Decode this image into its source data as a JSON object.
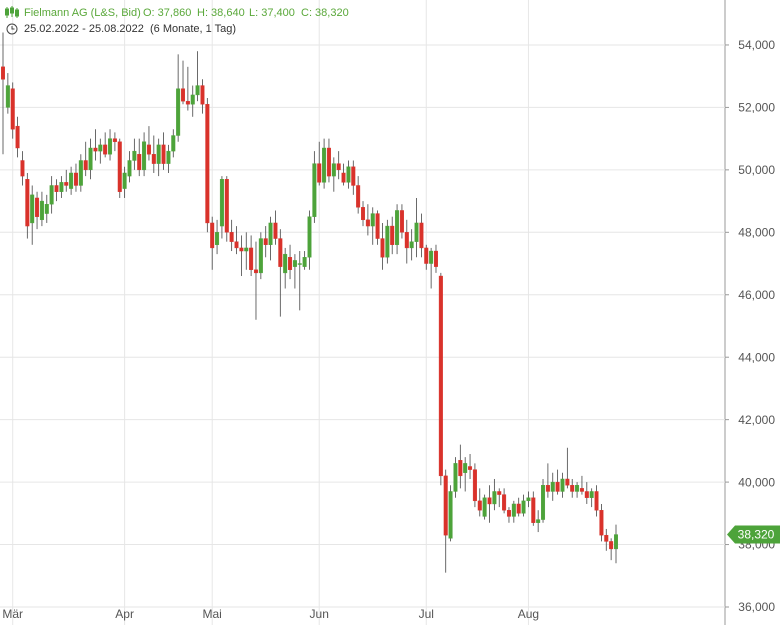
{
  "chart_data": {
    "type": "candlestick",
    "title": "Fielmann AG (L&S, Bid)",
    "ohlc_labels": [
      "O: 37,860",
      "H: 38,640",
      "L: 37,400",
      "C: 38,320"
    ],
    "subtitle": "25.02.2022 - 25.08.2022",
    "period": "(6 Monate, 1 Tag)",
    "last_label": "38,320",
    "up_color": "#4da33a",
    "down_color": "#d9322b",
    "ylim": [
      36000,
      55440
    ],
    "yticks": [
      {
        "value": 36000,
        "label": "36,000"
      },
      {
        "value": 38000,
        "label": "38,000"
      },
      {
        "value": 40000,
        "label": "40,000"
      },
      {
        "value": 42000,
        "label": "42,000"
      },
      {
        "value": 44000,
        "label": "44,000"
      },
      {
        "value": 46000,
        "label": "46,000"
      },
      {
        "value": 48000,
        "label": "48,000"
      },
      {
        "value": 50000,
        "label": "50,000"
      },
      {
        "value": 52000,
        "label": "52,000"
      },
      {
        "value": 54000,
        "label": "54,000"
      }
    ],
    "grid": true,
    "categories": [
      null,
      null,
      "Mär",
      null,
      null,
      null,
      null,
      null,
      null,
      null,
      null,
      null,
      null,
      null,
      null,
      null,
      null,
      null,
      null,
      null,
      null,
      null,
      null,
      null,
      null,
      "Apr",
      null,
      null,
      null,
      null,
      null,
      null,
      null,
      null,
      null,
      null,
      null,
      null,
      null,
      null,
      null,
      null,
      null,
      "Mai",
      null,
      null,
      null,
      null,
      null,
      null,
      null,
      null,
      null,
      null,
      null,
      null,
      null,
      null,
      null,
      null,
      null,
      null,
      null,
      null,
      null,
      "Jun",
      null,
      null,
      null,
      null,
      null,
      null,
      null,
      null,
      null,
      null,
      null,
      null,
      null,
      null,
      null,
      null,
      null,
      null,
      null,
      null,
      null,
      "Jul",
      null,
      null,
      null,
      null,
      null,
      null,
      null,
      null,
      null,
      null,
      null,
      null,
      null,
      null,
      null,
      null,
      null,
      null,
      null,
      null,
      "Aug",
      null,
      null,
      null,
      null,
      null,
      null,
      null,
      null,
      null,
      null,
      null,
      null,
      null,
      null,
      null,
      null,
      null,
      null
    ],
    "ohlc": [
      [
        53300,
        54400,
        50500,
        52900
      ],
      [
        52000,
        53100,
        51800,
        52700
      ],
      [
        52600,
        52800,
        51000,
        51300
      ],
      [
        51400,
        51700,
        50400,
        50700
      ],
      [
        50300,
        50600,
        49500,
        49800
      ],
      [
        49700,
        49900,
        47800,
        48200
      ],
      [
        48300,
        49500,
        47600,
        49200
      ],
      [
        49100,
        49300,
        48100,
        48500
      ],
      [
        48400,
        49300,
        48200,
        49000
      ],
      [
        48600,
        49200,
        48300,
        48900
      ],
      [
        48900,
        49800,
        48600,
        49500
      ],
      [
        49500,
        49700,
        49000,
        49300
      ],
      [
        49300,
        49800,
        49100,
        49600
      ],
      [
        49600,
        50000,
        49300,
        49500
      ],
      [
        49400,
        50100,
        49200,
        49900
      ],
      [
        49900,
        50200,
        49300,
        49500
      ],
      [
        49500,
        50500,
        49300,
        50300
      ],
      [
        50300,
        50900,
        49800,
        50000
      ],
      [
        50000,
        51000,
        49700,
        50700
      ],
      [
        50700,
        51300,
        50300,
        50600
      ],
      [
        50600,
        51000,
        50200,
        50800
      ],
      [
        50800,
        51200,
        50400,
        50500
      ],
      [
        50500,
        51300,
        50300,
        51000
      ],
      [
        51000,
        51200,
        50600,
        50900
      ],
      [
        50900,
        51000,
        49100,
        49300
      ],
      [
        49400,
        50100,
        49100,
        49900
      ],
      [
        49800,
        50600,
        49600,
        50300
      ],
      [
        50300,
        51000,
        50000,
        50600
      ],
      [
        50500,
        51000,
        49800,
        50000
      ],
      [
        50000,
        51200,
        49800,
        50900
      ],
      [
        50800,
        51400,
        50300,
        50500
      ],
      [
        50500,
        51100,
        49900,
        50200
      ],
      [
        50200,
        51000,
        49800,
        50800
      ],
      [
        50800,
        51200,
        50000,
        50200
      ],
      [
        50200,
        50800,
        49900,
        50600
      ],
      [
        50600,
        51300,
        50400,
        51100
      ],
      [
        51100,
        53700,
        50900,
        52600
      ],
      [
        52600,
        53500,
        52100,
        52200
      ],
      [
        52200,
        53300,
        51900,
        52100
      ],
      [
        52100,
        52700,
        51700,
        52400
      ],
      [
        52400,
        53800,
        52200,
        52700
      ],
      [
        52700,
        52900,
        51800,
        52100
      ],
      [
        52100,
        52300,
        48000,
        48300
      ],
      [
        48300,
        48500,
        46800,
        47500
      ],
      [
        47600,
        48400,
        47300,
        48000
      ],
      [
        48200,
        49800,
        47800,
        49700
      ],
      [
        49700,
        49800,
        47700,
        48000
      ],
      [
        48000,
        48400,
        47400,
        47700
      ],
      [
        47700,
        48200,
        47300,
        47500
      ],
      [
        47500,
        47900,
        46600,
        47400
      ],
      [
        47400,
        48000,
        46800,
        47500
      ],
      [
        47500,
        47900,
        46600,
        46800
      ],
      [
        46800,
        47700,
        45200,
        46700
      ],
      [
        46700,
        48000,
        46500,
        47800
      ],
      [
        47800,
        48200,
        47200,
        47600
      ],
      [
        47600,
        48500,
        47100,
        48300
      ],
      [
        48300,
        48700,
        47600,
        47800
      ],
      [
        47800,
        48100,
        45300,
        46900
      ],
      [
        46700,
        47500,
        46200,
        47300
      ],
      [
        47200,
        47600,
        46500,
        46800
      ],
      [
        46900,
        47300,
        46200,
        47100
      ],
      [
        47000,
        47400,
        45500,
        47000
      ],
      [
        46900,
        47400,
        46800,
        47200
      ],
      [
        47200,
        48700,
        46800,
        48500
      ],
      [
        48500,
        50600,
        48300,
        50200
      ],
      [
        50200,
        50900,
        49500,
        49600
      ],
      [
        49600,
        51000,
        49400,
        50700
      ],
      [
        50700,
        51000,
        49600,
        49800
      ],
      [
        49800,
        50400,
        49300,
        50200
      ],
      [
        50200,
        50600,
        49700,
        50000
      ],
      [
        49900,
        50200,
        49500,
        49600
      ],
      [
        49600,
        50300,
        49400,
        50100
      ],
      [
        50100,
        50300,
        49200,
        49500
      ],
      [
        49500,
        49800,
        48600,
        48800
      ],
      [
        48800,
        49000,
        48200,
        48400
      ],
      [
        48400,
        48900,
        47900,
        48200
      ],
      [
        48200,
        48800,
        47600,
        48600
      ],
      [
        48600,
        48700,
        47600,
        47800
      ],
      [
        47800,
        48300,
        46800,
        47200
      ],
      [
        47200,
        48400,
        47000,
        48200
      ],
      [
        48200,
        48500,
        47300,
        47600
      ],
      [
        47600,
        48900,
        47300,
        48700
      ],
      [
        48700,
        48900,
        47800,
        48000
      ],
      [
        48000,
        48400,
        47000,
        47500
      ],
      [
        47500,
        48100,
        47100,
        47700
      ],
      [
        47700,
        49100,
        47200,
        48300
      ],
      [
        48300,
        48600,
        47200,
        47500
      ],
      [
        47500,
        47600,
        46800,
        47000
      ],
      [
        47000,
        47500,
        46200,
        47400
      ],
      [
        47400,
        47600,
        46700,
        46900
      ],
      [
        46600,
        46700,
        39900,
        40200
      ],
      [
        40200,
        40400,
        37100,
        38300
      ],
      [
        38200,
        39900,
        38100,
        39700
      ],
      [
        39700,
        40800,
        39500,
        40600
      ],
      [
        40700,
        41200,
        39800,
        40200
      ],
      [
        40300,
        40800,
        39700,
        40600
      ],
      [
        40500,
        40900,
        40100,
        40400
      ],
      [
        40400,
        40600,
        39200,
        39400
      ],
      [
        39400,
        39800,
        38900,
        39100
      ],
      [
        38900,
        39600,
        38800,
        39500
      ],
      [
        39500,
        39900,
        38700,
        39300
      ],
      [
        39300,
        40100,
        39100,
        39700
      ],
      [
        39700,
        39800,
        39200,
        39600
      ],
      [
        39600,
        39800,
        39000,
        39100
      ],
      [
        39100,
        39200,
        38700,
        38900
      ],
      [
        38900,
        39400,
        38700,
        39300
      ],
      [
        39300,
        39500,
        38900,
        39000
      ],
      [
        39000,
        39600,
        38900,
        39400
      ],
      [
        39400,
        39700,
        39200,
        39500
      ],
      [
        39500,
        39700,
        38600,
        38700
      ],
      [
        38700,
        39100,
        38400,
        38800
      ],
      [
        38800,
        40100,
        38700,
        39900
      ],
      [
        39900,
        40600,
        39500,
        39700
      ],
      [
        39700,
        40300,
        39400,
        40000
      ],
      [
        40000,
        40400,
        39600,
        39700
      ],
      [
        39700,
        40300,
        39500,
        40100
      ],
      [
        40100,
        41100,
        39800,
        39900
      ],
      [
        39900,
        40100,
        39500,
        39700
      ],
      [
        39700,
        40000,
        39500,
        39900
      ],
      [
        39800,
        40200,
        39600,
        39700
      ],
      [
        39700,
        40000,
        39300,
        39500
      ],
      [
        39500,
        39800,
        39200,
        39700
      ],
      [
        39700,
        39900,
        38900,
        39100
      ],
      [
        39100,
        39300,
        38100,
        38300
      ],
      [
        38300,
        38500,
        37800,
        38100
      ],
      [
        38100,
        38200,
        37500,
        37860
      ],
      [
        37860,
        38640,
        37400,
        38320
      ]
    ]
  }
}
